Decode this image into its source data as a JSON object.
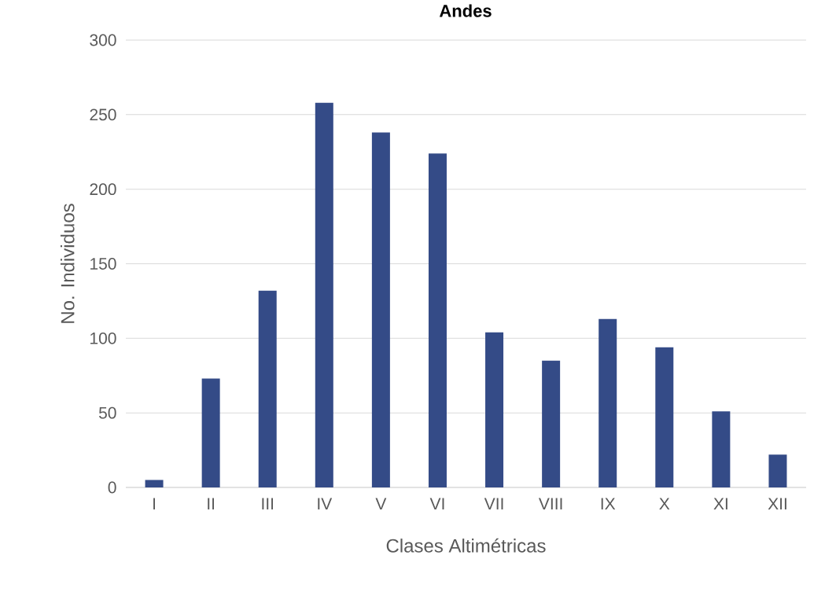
{
  "chart_data": {
    "type": "bar",
    "title": "Andes",
    "xlabel": "Clases Altimétricas",
    "ylabel": "No. Individuos",
    "categories": [
      "I",
      "II",
      "III",
      "IV",
      "V",
      "VI",
      "VII",
      "VIII",
      "IX",
      "X",
      "XI",
      "XII"
    ],
    "values": [
      5,
      73,
      132,
      258,
      238,
      224,
      104,
      85,
      113,
      94,
      51,
      22
    ],
    "color": "#344b87",
    "ylim": [
      0,
      300
    ],
    "yticks": [
      0,
      50,
      100,
      150,
      200,
      250,
      300
    ],
    "grid": "y"
  }
}
